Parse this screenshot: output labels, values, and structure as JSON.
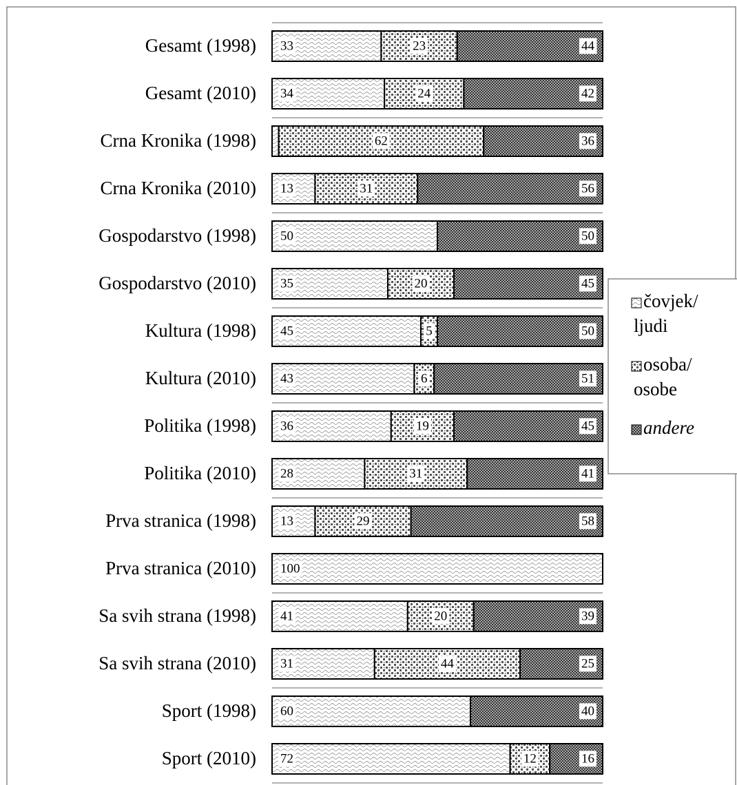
{
  "chart_data": {
    "type": "stacked-bar-100",
    "categories": [
      "Gesamt (1998)",
      "Gesamt (2010)",
      "Crna Kronika (1998)",
      "Crna Kronika (2010)",
      "Gospodarstvo (1998)",
      "Gospodarstvo (2010)",
      "Kultura (1998)",
      "Kultura (2010)",
      "Politika (1998)",
      "Politika (2010)",
      "Prva stranica (1998)",
      "Prva stranica (2010)",
      "Sa svih strana (1998)",
      "Sa svih strana (2010)",
      "Sport (1998)",
      "Sport (2010)"
    ],
    "series": [
      {
        "name": "čovjek/ljudi",
        "color": "#999999",
        "values": [
          33,
          34,
          2,
          13,
          50,
          35,
          45,
          43,
          36,
          28,
          13,
          100,
          41,
          31,
          60,
          72
        ]
      },
      {
        "name": "osoba/osobe",
        "color": "#555555",
        "values": [
          23,
          24,
          62,
          31,
          0,
          20,
          5,
          6,
          19,
          31,
          29,
          0,
          20,
          44,
          0,
          12
        ]
      },
      {
        "name": "andere",
        "color": "#333333",
        "values": [
          44,
          42,
          36,
          56,
          50,
          45,
          50,
          51,
          45,
          41,
          58,
          0,
          39,
          25,
          40,
          16
        ]
      }
    ],
    "legend": "right"
  }
}
